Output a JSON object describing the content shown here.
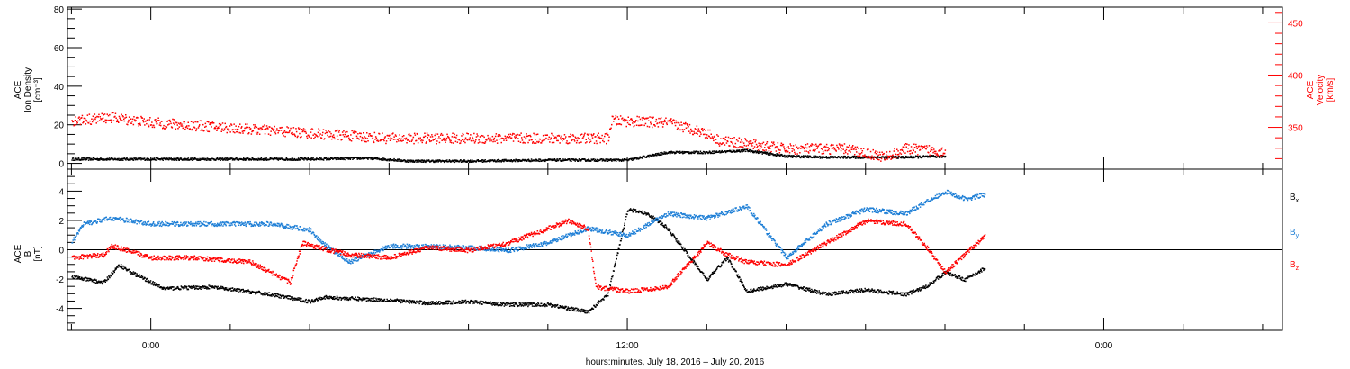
{
  "chart_data": [
    {
      "type": "scatter",
      "panel": "top",
      "ylabel_lines": [
        "ACE",
        "Ion Density",
        "[cm⁻³]"
      ],
      "y2label_lines": [
        "ACE",
        "Velocity",
        "[km/s]"
      ],
      "ylim": [
        -3,
        81
      ],
      "yticks": [
        0,
        20,
        40,
        60,
        80
      ],
      "y2lim": [
        310,
        465
      ],
      "y2ticks": [
        350,
        400,
        450
      ],
      "series": [
        {
          "axis": "left",
          "color": "#000000",
          "x": [
            -2.0,
            0.0,
            2.0,
            4.0,
            5.5,
            6.5,
            8.0,
            10.0,
            12.0,
            13.0,
            14.0,
            15.0,
            16.0,
            17.0,
            18.0,
            19.0,
            20.0
          ],
          "values": [
            2.5,
            2.5,
            2.5,
            2.5,
            3.0,
            1.5,
            1.5,
            2.0,
            2.0,
            6.0,
            6.0,
            7.0,
            4.0,
            3.5,
            3.5,
            3.5,
            4.0
          ]
        },
        {
          "axis": "right",
          "color": "#ff0000",
          "x": [
            -2.0,
            -1.0,
            0.0,
            2.0,
            4.0,
            6.0,
            8.0,
            10.0,
            11.5,
            11.6,
            13.0,
            14.0,
            14.3,
            16.0,
            17.5,
            18.5,
            19.0,
            20.0
          ],
          "values": [
            357,
            360,
            355,
            350,
            345,
            340,
            340,
            340,
            340,
            357,
            355,
            345,
            338,
            330,
            330,
            322,
            330,
            328
          ]
        }
      ]
    },
    {
      "type": "scatter",
      "panel": "bottom",
      "ylabel_lines": [
        "ACE",
        "B",
        "[nT]"
      ],
      "ylim": [
        -5.5,
        5.5
      ],
      "yticks": [
        -4,
        -2,
        0,
        2,
        4
      ],
      "xlabel": "hours:minutes, July 18, 2016 – July 20, 2016",
      "xticks": [
        {
          "hour": 0,
          "label": "0:00"
        },
        {
          "hour": 12,
          "label": "12:00"
        },
        {
          "hour": 24,
          "label": "0:00"
        }
      ],
      "xlim": [
        -2.1,
        28.5
      ],
      "series": [
        {
          "name": "Bx",
          "label_main": "B",
          "label_sub": "x",
          "color": "#000000",
          "x": [
            -2.0,
            -1.2,
            -0.8,
            -0.5,
            0.3,
            1.5,
            3.0,
            4.0,
            4.3,
            6.0,
            7.0,
            8.0,
            9.0,
            10.0,
            11.0,
            11.5,
            12.0,
            12.5,
            13.0,
            14.0,
            14.5,
            15.0,
            16.0,
            17.0,
            18.0,
            19.0,
            19.5,
            20.0,
            20.5,
            21.0
          ],
          "values": [
            -1.8,
            -2.2,
            -1.0,
            -1.5,
            -2.6,
            -2.5,
            -3.0,
            -3.5,
            -3.2,
            -3.4,
            -3.6,
            -3.5,
            -3.7,
            -3.7,
            -4.2,
            -3.0,
            2.8,
            2.5,
            1.5,
            -2.0,
            -0.5,
            -2.8,
            -2.3,
            -3.0,
            -2.7,
            -3.0,
            -2.5,
            -1.5,
            -2.0,
            -1.2
          ]
        },
        {
          "name": "By",
          "label_main": "B",
          "label_sub": "y",
          "color": "#1e7fd6",
          "x": [
            -2.0,
            -1.7,
            -1.0,
            0.0,
            1.0,
            3.0,
            4.0,
            4.3,
            5.0,
            6.0,
            8.0,
            9.0,
            10.0,
            11.0,
            12.0,
            13.0,
            14.0,
            15.0,
            16.0,
            17.0,
            18.0,
            19.0,
            19.5,
            20.0,
            20.5,
            21.0
          ],
          "values": [
            0.6,
            1.8,
            2.2,
            1.8,
            1.8,
            1.8,
            1.4,
            0.5,
            -0.8,
            0.3,
            0.2,
            0.0,
            0.5,
            1.5,
            1.0,
            2.5,
            2.2,
            3.0,
            -0.5,
            1.8,
            2.8,
            2.5,
            3.3,
            4.0,
            3.5,
            3.8
          ]
        },
        {
          "name": "Bz",
          "label_main": "B",
          "label_sub": "z",
          "color": "#ff0000",
          "x": [
            -2.0,
            -1.2,
            -1.0,
            0.0,
            1.0,
            2.5,
            3.5,
            3.8,
            4.2,
            5.0,
            6.0,
            7.0,
            8.0,
            9.0,
            10.0,
            10.5,
            11.0,
            11.2,
            12.0,
            13.0,
            14.0,
            14.5,
            15.0,
            16.0,
            17.0,
            18.0,
            19.0,
            19.5,
            20.0,
            21.0
          ],
          "values": [
            -0.5,
            -0.3,
            0.3,
            -0.5,
            -0.5,
            -0.8,
            -2.2,
            0.5,
            0.2,
            -0.3,
            -0.5,
            0.2,
            0.0,
            0.5,
            1.5,
            2.0,
            1.5,
            -2.5,
            -2.8,
            -2.5,
            0.5,
            -0.3,
            -0.8,
            -1.0,
            0.5,
            2.0,
            1.8,
            0.3,
            -1.5,
            1.0
          ]
        }
      ]
    }
  ]
}
